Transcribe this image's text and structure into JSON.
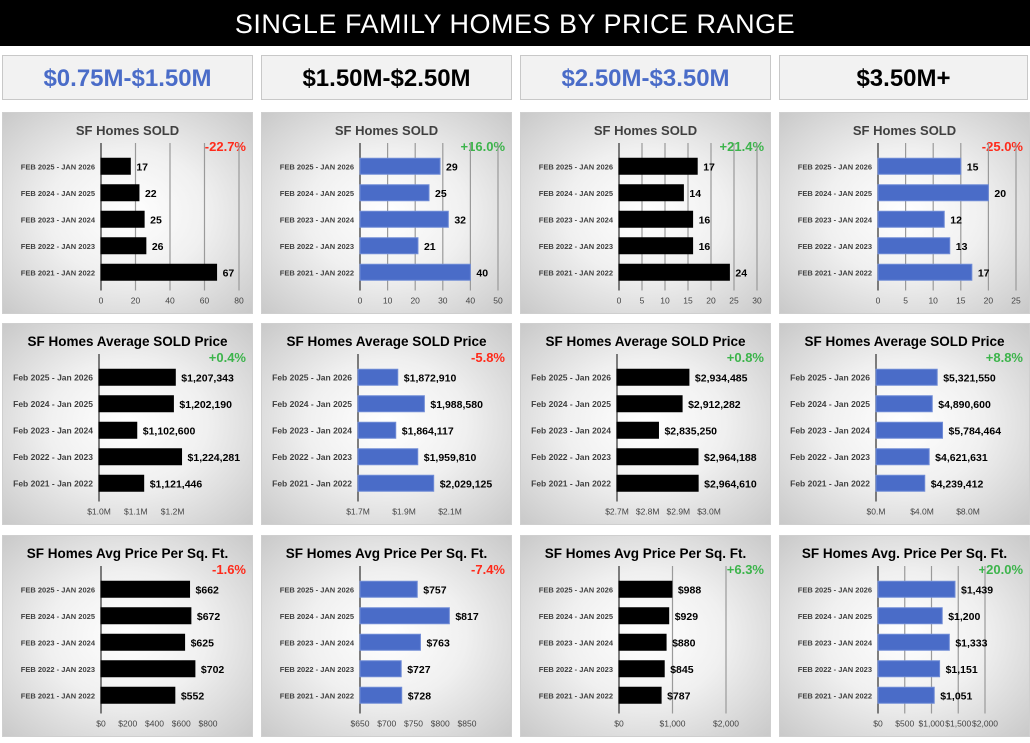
{
  "header": {
    "title": "SINGLE FAMILY HOMES BY PRICE RANGE"
  },
  "tabs": [
    {
      "label": "$0.75M-$1.50M",
      "color": "#4a6cc8"
    },
    {
      "label": "$1.50M-$2.50M",
      "color": "#000000"
    },
    {
      "label": "$2.50M-$3.50M",
      "color": "#4a6cc8"
    },
    {
      "label": "$3.50M+",
      "color": "#000000"
    }
  ],
  "colors": {
    "black_bar": "#000000",
    "blue_bar": "#4a6cc8",
    "positive": "#3cb44b",
    "negative": "#ff2a1a"
  },
  "chart_data": [
    {
      "type": "bar",
      "orientation": "horizontal",
      "title": "SF Homes SOLD",
      "change": "-22.7%",
      "change_sign": "negative",
      "bar_color": "#000000",
      "categories": [
        "FEB 2025 - JAN 2026",
        "FEB 2024 - JAN 2025",
        "FEB 2023 - JAN 2024",
        "FEB 2022 - JAN 2023",
        "FEB 2021 - JAN 2022"
      ],
      "values": [
        17,
        22,
        25,
        26,
        67
      ],
      "value_labels": [
        "17",
        "22",
        "25",
        "26",
        "67"
      ],
      "xlim": [
        0,
        80
      ],
      "ticks": [
        0,
        20,
        40,
        60,
        80
      ],
      "tick_labels": [
        "0",
        "20",
        "40",
        "60",
        "80"
      ],
      "grid": true
    },
    {
      "type": "bar",
      "orientation": "horizontal",
      "title": "SF Homes SOLD",
      "change": "+16.0%",
      "change_sign": "positive",
      "bar_color": "#4a6cc8",
      "categories": [
        "FEB 2025 - JAN 2026",
        "FEB 2024 - JAN 2025",
        "FEB 2023 - JAN 2024",
        "FEB 2022 - JAN 2023",
        "FEB 2021 - JAN 2022"
      ],
      "values": [
        29,
        25,
        32,
        21,
        40
      ],
      "value_labels": [
        "29",
        "25",
        "32",
        "21",
        "40"
      ],
      "xlim": [
        0,
        50
      ],
      "ticks": [
        0,
        10,
        20,
        30,
        40,
        50
      ],
      "tick_labels": [
        "0",
        "10",
        "20",
        "30",
        "40",
        "50"
      ],
      "grid": true
    },
    {
      "type": "bar",
      "orientation": "horizontal",
      "title": "SF Homes SOLD",
      "change": "+21.4%",
      "change_sign": "positive",
      "bar_color": "#000000",
      "categories": [
        "FEB 2025 - JAN 2026",
        "FEB 2024 - JAN 2025",
        "FEB 2023 - JAN 2024",
        "FEB 2022 - JAN 2023",
        "FEB 2021 - JAN 2022"
      ],
      "values": [
        17,
        14,
        16,
        16,
        24
      ],
      "value_labels": [
        "17",
        "14",
        "16",
        "16",
        "24"
      ],
      "xlim": [
        0,
        30
      ],
      "ticks": [
        0,
        5,
        10,
        15,
        20,
        25,
        30
      ],
      "tick_labels": [
        "0",
        "5",
        "10",
        "15",
        "20",
        "25",
        "30"
      ],
      "grid": true
    },
    {
      "type": "bar",
      "orientation": "horizontal",
      "title": "SF Homes SOLD",
      "change": "-25.0%",
      "change_sign": "negative",
      "bar_color": "#4a6cc8",
      "categories": [
        "FEB 2025 - JAN 2026",
        "FEB 2024 - JAN 2025",
        "FEB 2023 - JAN 2024",
        "FEB 2022 - JAN 2023",
        "FEB 2021 - JAN 2022"
      ],
      "values": [
        15,
        20,
        12,
        13,
        17
      ],
      "value_labels": [
        "15",
        "20",
        "12",
        "13",
        "17"
      ],
      "xlim": [
        0,
        25
      ],
      "ticks": [
        0,
        5,
        10,
        15,
        20,
        25
      ],
      "tick_labels": [
        "0",
        "5",
        "10",
        "15",
        "20",
        "25"
      ],
      "grid": true
    },
    {
      "type": "bar",
      "orientation": "horizontal",
      "title": "SF Homes Average SOLD Price",
      "change": "+0.4%",
      "change_sign": "positive",
      "bar_color": "#000000",
      "categories": [
        "Feb 2025 - Jan 2026",
        "Feb 2024 - Jan 2025",
        "Feb 2023 - Jan 2024",
        "Feb 2022 - Jan 2023",
        "Feb 2021 - Jan 2022"
      ],
      "values": [
        1207343,
        1202190,
        1102600,
        1224281,
        1121446
      ],
      "value_labels": [
        "$1,207,343",
        "$1,202,190",
        "$1,102,600",
        "$1,224,281",
        "$1,121,446"
      ],
      "xlim": [
        1000000,
        1250000
      ],
      "ticks": [
        1000000,
        1100000,
        1200000
      ],
      "tick_labels": [
        "$1.0M",
        "$1.1M",
        "$1.2M"
      ],
      "grid": false
    },
    {
      "type": "bar",
      "orientation": "horizontal",
      "title": "SF Homes Average SOLD Price",
      "change": "-5.8%",
      "change_sign": "negative",
      "bar_color": "#4a6cc8",
      "categories": [
        "Feb 2025 - Jan 2026",
        "Feb 2024 - Jan 2025",
        "Feb 2023 - Jan 2024",
        "Feb 2022 - Jan 2023",
        "Feb 2021 - Jan 2022"
      ],
      "values": [
        1872910,
        1988580,
        1864117,
        1959810,
        2029125
      ],
      "value_labels": [
        "$1,872,910",
        "$1,988,580",
        "$1,864,117",
        "$1,959,810",
        "$2,029,125"
      ],
      "xlim": [
        1700000,
        2100000
      ],
      "ticks": [
        1700000,
        1900000,
        2100000
      ],
      "tick_labels": [
        "$1.7M",
        "$1.9M",
        "$2.1M"
      ],
      "grid": false
    },
    {
      "type": "bar",
      "orientation": "horizontal",
      "title": "SF Homes Average SOLD Price",
      "change": "+0.8%",
      "change_sign": "positive",
      "bar_color": "#000000",
      "categories": [
        "Feb 2025 - Jan 2026",
        "Feb 2024 - Jan 2025",
        "Feb 2023 - Jan 2024",
        "Feb 2022 - Jan 2023",
        "Feb 2021 - Jan 2022"
      ],
      "values": [
        2934485,
        2912282,
        2835250,
        2964188,
        2964610
      ],
      "value_labels": [
        "$2,934,485",
        "$2,912,282",
        "$2,835,250",
        "$2,964,188",
        "$2,964,610"
      ],
      "xlim": [
        2700000,
        3000000
      ],
      "ticks": [
        2700000,
        2800000,
        2900000,
        3000000
      ],
      "tick_labels": [
        "$2.7M",
        "$2.8M",
        "$2.9M",
        "$3.0M"
      ],
      "grid": false
    },
    {
      "type": "bar",
      "orientation": "horizontal",
      "title": "SF Homes Average SOLD Price",
      "change": "+8.8%",
      "change_sign": "positive",
      "bar_color": "#4a6cc8",
      "categories": [
        "Feb 2025 - Jan 2026",
        "Feb 2024 - Jan 2025",
        "Feb 2023 - Jan 2024",
        "Feb 2022 - Jan 2023",
        "Feb 2021 - Jan 2022"
      ],
      "values": [
        5321550,
        4890600,
        5784464,
        4621631,
        4239412
      ],
      "value_labels": [
        "$5,321,550",
        "$4,890,600",
        "$5,784,464",
        "$4,621,631",
        "$4,239,412"
      ],
      "xlim": [
        0,
        8000000
      ],
      "ticks": [
        0,
        4000000,
        8000000
      ],
      "tick_labels": [
        "$0.M",
        "$4.0M",
        "$8.0M"
      ],
      "grid": false
    },
    {
      "type": "bar",
      "orientation": "horizontal",
      "title": "SF Homes Avg Price Per Sq. Ft.",
      "change": "-1.6%",
      "change_sign": "negative",
      "bar_color": "#000000",
      "categories": [
        "FEB 2025 - JAN 2026",
        "FEB 2024 - JAN 2025",
        "FEB 2023 - JAN 2024",
        "FEB 2022 - JAN 2023",
        "FEB 2021 - JAN 2022"
      ],
      "values": [
        662,
        672,
        625,
        702,
        552
      ],
      "value_labels": [
        "$662",
        "$672",
        "$625",
        "$702",
        "$552"
      ],
      "xlim": [
        0,
        800
      ],
      "ticks": [
        0,
        200,
        400,
        600,
        800
      ],
      "tick_labels": [
        "$0",
        "$200",
        "$400",
        "$600",
        "$800"
      ],
      "grid": false
    },
    {
      "type": "bar",
      "orientation": "horizontal",
      "title": "SF Homes Avg Price Per Sq. Ft.",
      "change": "-7.4%",
      "change_sign": "negative",
      "bar_color": "#4a6cc8",
      "categories": [
        "FEB 2025 - JAN 2026",
        "FEB 2024 - JAN 2025",
        "FEB 2023 - JAN 2024",
        "FEB 2022 - JAN 2023",
        "FEB 2021 - JAN 2022"
      ],
      "values": [
        757,
        817,
        763,
        727,
        728
      ],
      "value_labels": [
        "$757",
        "$817",
        "$763",
        "$727",
        "$728"
      ],
      "xlim": [
        650,
        850
      ],
      "ticks": [
        650,
        700,
        750,
        800,
        850
      ],
      "tick_labels": [
        "$650",
        "$700",
        "$750",
        "$800",
        "$850"
      ],
      "grid": false
    },
    {
      "type": "bar",
      "orientation": "horizontal",
      "title": "SF Homes Avg Price Per Sq. Ft.",
      "change": "+6.3%",
      "change_sign": "positive",
      "bar_color": "#000000",
      "categories": [
        "FEB 2025 - JAN 2026",
        "FEB 2024 - JAN 2025",
        "FEB 2023 - JAN 2024",
        "FEB 2022 - JAN 2023",
        "FEB 2021 - JAN 2022"
      ],
      "values": [
        988,
        929,
        880,
        845,
        787
      ],
      "value_labels": [
        "$988",
        "$929",
        "$880",
        "$845",
        "$787"
      ],
      "xlim": [
        0,
        2000
      ],
      "ticks": [
        0,
        1000,
        2000
      ],
      "tick_labels": [
        "$0",
        "$1,000",
        "$2,000"
      ],
      "grid": true
    },
    {
      "type": "bar",
      "orientation": "horizontal",
      "title": "SF Homes Avg. Price Per Sq. Ft.",
      "change": "+20.0%",
      "change_sign": "positive",
      "bar_color": "#4a6cc8",
      "categories": [
        "FEB 2025 - JAN 2026",
        "FEB 2024 - JAN 2025",
        "FEB 2023 - JAN 2024",
        "FEB 2022 - JAN 2023",
        "FEB 2021 - JAN 2022"
      ],
      "values": [
        1439,
        1200,
        1333,
        1151,
        1051
      ],
      "value_labels": [
        "$1,439",
        "$1,200",
        "$1,333",
        "$1,151",
        "$1,051"
      ],
      "xlim": [
        0,
        2000
      ],
      "ticks": [
        0,
        500,
        1000,
        1500,
        2000
      ],
      "tick_labels": [
        "$0",
        "$500",
        "$1,000",
        "$1,500",
        "$2,000"
      ],
      "grid": true
    }
  ]
}
